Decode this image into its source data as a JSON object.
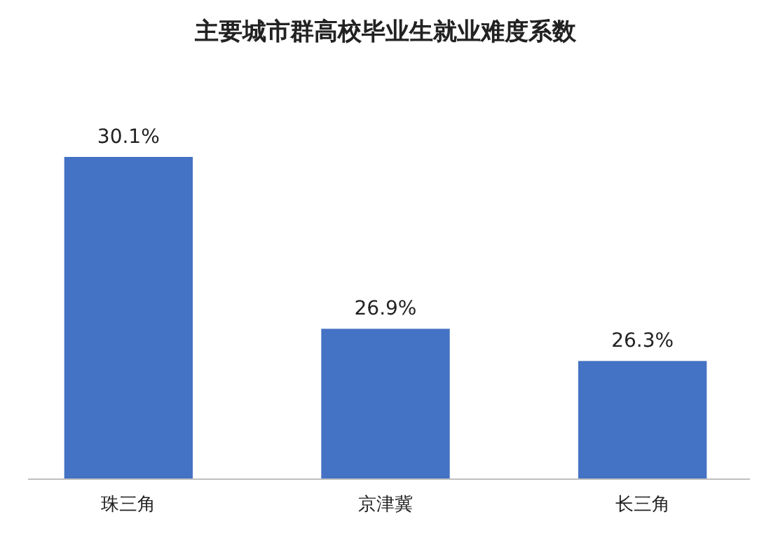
{
  "chart_data": {
    "type": "bar",
    "title": "主要城市群高校毕业生就业难度系数",
    "categories": [
      "珠三角",
      "京津冀",
      "长三角"
    ],
    "values": [
      30.1,
      26.9,
      26.3
    ],
    "value_labels": [
      "30.1%",
      "26.9%",
      "26.3%"
    ],
    "color": "#4472c4",
    "ylim": [
      24.1,
      30.1
    ]
  }
}
